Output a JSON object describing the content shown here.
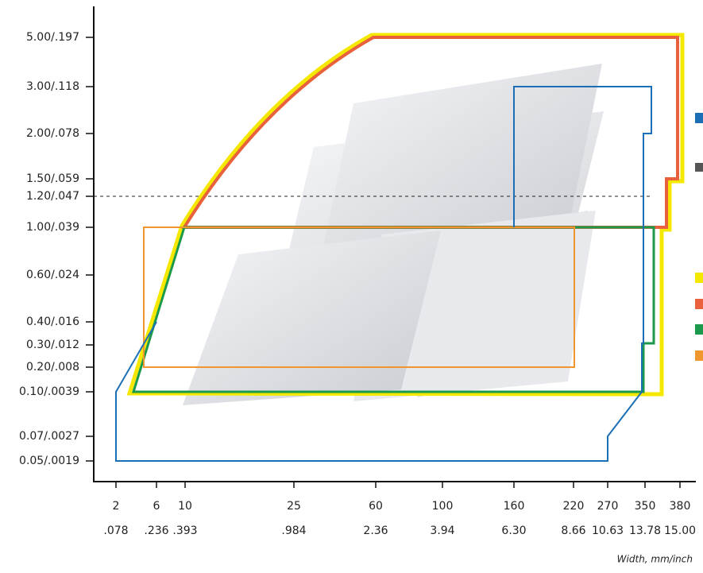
{
  "y_axis": {
    "tick_labels": [
      "5.00/.197",
      "3.00/.118",
      "2.00/.078",
      "1.50/.059",
      "1.20/.047",
      "1.00/.039",
      "0.60/.024",
      "0.40/.016",
      "0.30/.012",
      "0.20/.008",
      "0.10/.0039",
      "0.07/.0027",
      "0.05/.0019"
    ]
  },
  "x_axis": {
    "mm_labels": [
      "2",
      "6",
      "10",
      "25",
      "60",
      "100",
      "160",
      "220",
      "270",
      "350",
      "380"
    ],
    "inch_labels": [
      ".078",
      ".236",
      ".393",
      ".984",
      "2.36",
      "3.94",
      "6.30",
      "8.66",
      "10.63",
      "13.78",
      "15.00"
    ],
    "title": "Width, mm/inch"
  }
}
